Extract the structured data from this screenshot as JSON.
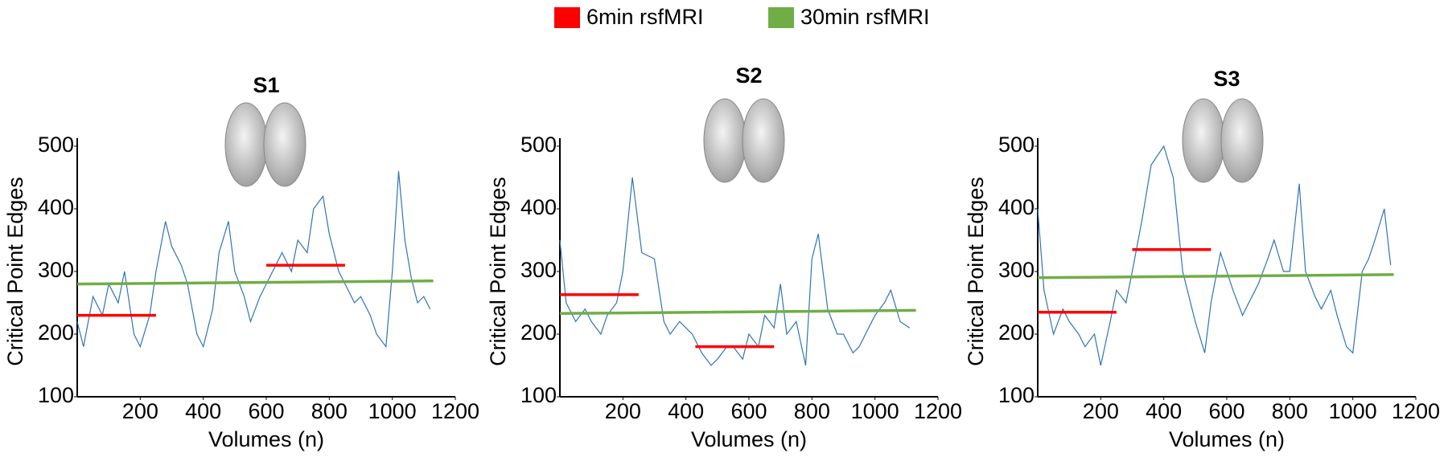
{
  "chart_data": [
    {
      "type": "line",
      "title": "S1",
      "xlabel": "Volumes (n)",
      "ylabel": "Critical Point Edges",
      "xlim": [
        0,
        1200
      ],
      "ylim": [
        100,
        500
      ],
      "xticks": [
        200,
        400,
        600,
        800,
        1000,
        1200
      ],
      "yticks": [
        100,
        200,
        300,
        400,
        500
      ],
      "series": [
        {
          "color": "#2e75b6",
          "x": [
            0,
            20,
            50,
            80,
            100,
            130,
            150,
            180,
            200,
            230,
            250,
            280,
            300,
            330,
            350,
            380,
            400,
            430,
            450,
            480,
            500,
            530,
            550,
            580,
            600,
            630,
            650,
            680,
            700,
            730,
            750,
            780,
            800,
            830,
            850,
            880,
            900,
            930,
            950,
            980,
            1000,
            1020,
            1040,
            1060,
            1080,
            1100,
            1120
          ],
          "values": [
            220,
            180,
            260,
            230,
            280,
            250,
            300,
            200,
            180,
            230,
            300,
            380,
            340,
            310,
            280,
            200,
            180,
            240,
            330,
            380,
            300,
            260,
            220,
            260,
            280,
            310,
            330,
            300,
            350,
            330,
            400,
            420,
            360,
            300,
            280,
            250,
            260,
            230,
            200,
            180,
            300,
            460,
            350,
            290,
            250,
            260,
            240
          ]
        },
        {
          "name": "6min rsfMRI",
          "color": "#ff0000",
          "x": [
            0,
            250
          ],
          "values": [
            230,
            230
          ]
        },
        {
          "color": "#ff0000",
          "x": [
            600,
            850
          ],
          "values": [
            310,
            310
          ]
        },
        {
          "name": "30min rsfMRI",
          "color": "#70ad47",
          "x": [
            0,
            1130
          ],
          "values": [
            280,
            285
          ]
        }
      ]
    },
    {
      "type": "line",
      "title": "S2",
      "xlabel": "Volumes (n)",
      "ylabel": "Critical Point Edges",
      "xlim": [
        0,
        1200
      ],
      "ylim": [
        100,
        500
      ],
      "xticks": [
        200,
        400,
        600,
        800,
        1000,
        1200
      ],
      "yticks": [
        100,
        200,
        300,
        400,
        500
      ],
      "series": [
        {
          "color": "#2e75b6",
          "x": [
            0,
            20,
            50,
            80,
            100,
            130,
            150,
            180,
            200,
            230,
            260,
            300,
            330,
            350,
            380,
            420,
            450,
            480,
            500,
            530,
            550,
            580,
            600,
            630,
            650,
            680,
            700,
            720,
            750,
            780,
            800,
            820,
            850,
            880,
            900,
            930,
            950,
            980,
            1000,
            1030,
            1050,
            1080,
            1110
          ],
          "values": [
            350,
            250,
            220,
            240,
            220,
            200,
            230,
            250,
            300,
            450,
            330,
            320,
            220,
            200,
            220,
            200,
            170,
            150,
            160,
            180,
            180,
            160,
            200,
            180,
            230,
            210,
            280,
            200,
            220,
            150,
            320,
            360,
            240,
            200,
            200,
            170,
            180,
            210,
            230,
            250,
            270,
            220,
            210
          ]
        },
        {
          "color": "#ff0000",
          "x": [
            0,
            250
          ],
          "values": [
            263,
            263
          ]
        },
        {
          "color": "#ff0000",
          "x": [
            430,
            680
          ],
          "values": [
            180,
            180
          ]
        },
        {
          "color": "#70ad47",
          "x": [
            0,
            1130
          ],
          "values": [
            233,
            238
          ]
        }
      ]
    },
    {
      "type": "line",
      "title": "S3",
      "xlabel": "Volumes (n)",
      "ylabel": "Critical Point Edges",
      "xlim": [
        0,
        1200
      ],
      "ylim": [
        100,
        500
      ],
      "xticks": [
        200,
        400,
        600,
        800,
        1000,
        1200
      ],
      "yticks": [
        100,
        200,
        300,
        400,
        500
      ],
      "series": [
        {
          "color": "#2e75b6",
          "x": [
            0,
            20,
            50,
            80,
            100,
            130,
            150,
            180,
            200,
            230,
            250,
            280,
            300,
            330,
            360,
            400,
            430,
            460,
            500,
            530,
            550,
            580,
            620,
            650,
            680,
            700,
            730,
            750,
            780,
            800,
            830,
            850,
            880,
            900,
            930,
            950,
            980,
            1000,
            1030,
            1050,
            1070,
            1100,
            1120
          ],
          "values": [
            400,
            270,
            200,
            240,
            220,
            200,
            180,
            200,
            150,
            220,
            270,
            250,
            300,
            380,
            470,
            500,
            450,
            300,
            220,
            170,
            250,
            330,
            270,
            230,
            260,
            280,
            320,
            350,
            300,
            300,
            440,
            300,
            260,
            240,
            270,
            230,
            180,
            170,
            300,
            320,
            350,
            400,
            310
          ]
        },
        {
          "color": "#ff0000",
          "x": [
            0,
            250
          ],
          "values": [
            235,
            235
          ]
        },
        {
          "color": "#ff0000",
          "x": [
            300,
            550
          ],
          "values": [
            335,
            335
          ]
        },
        {
          "color": "#70ad47",
          "x": [
            0,
            1130
          ],
          "values": [
            290,
            295
          ]
        }
      ]
    }
  ]
}
